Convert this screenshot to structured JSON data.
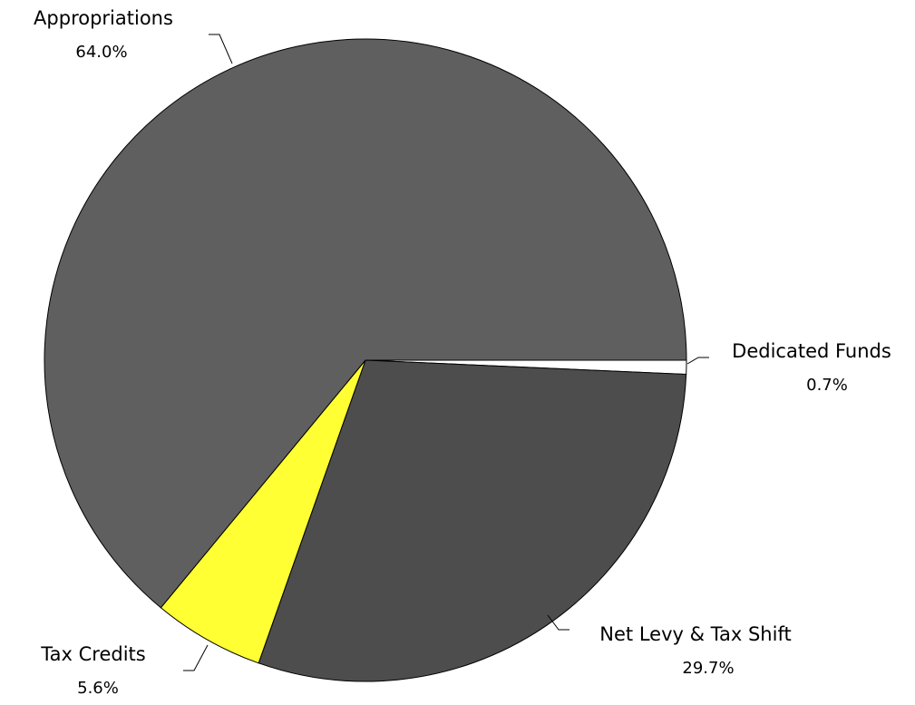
{
  "chart_data": {
    "type": "pie",
    "slices": [
      {
        "label": "Dedicated Funds",
        "value": 0.7,
        "value_text": "0.7%",
        "color": "#ffffff"
      },
      {
        "label": "Net Levy & Tax Shift",
        "value": 29.7,
        "value_text": "29.7%",
        "color": "#4d4d4d"
      },
      {
        "label": "Tax Credits",
        "value": 5.6,
        "value_text": "5.6%",
        "color": "#ffff33"
      },
      {
        "label": "Appropriations",
        "value": 64.0,
        "value_text": "64.0%",
        "color": "#5f5f5f"
      }
    ],
    "start": "3 o'clock, clockwise",
    "legend": "none"
  }
}
